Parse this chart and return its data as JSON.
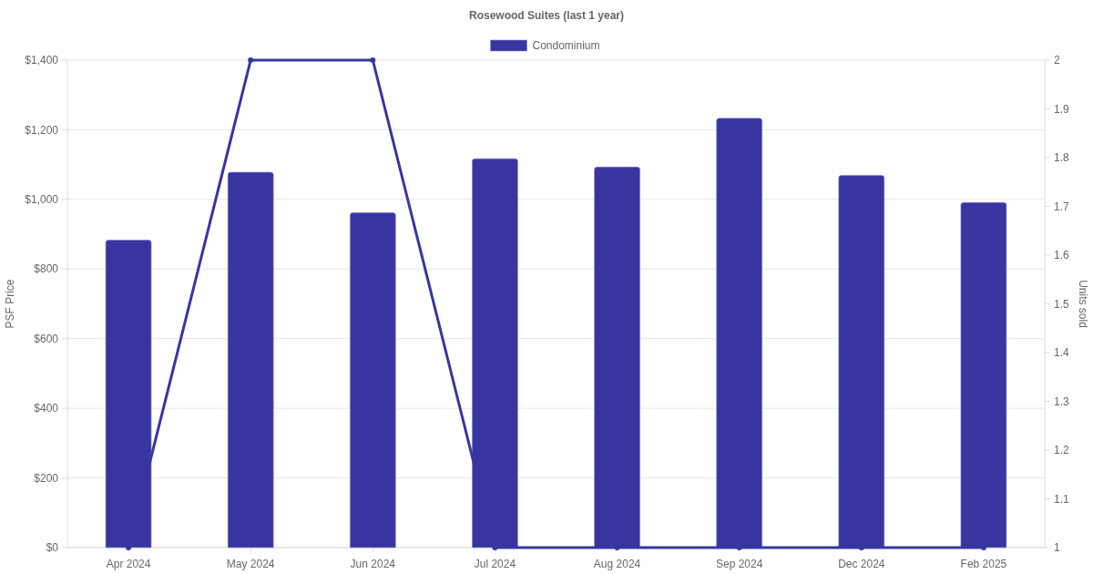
{
  "chart_data": {
    "type": "bar",
    "title": "Rosewood Suites (last 1 year)",
    "categories": [
      "Apr 2024",
      "May 2024",
      "Jun 2024",
      "Jul 2024",
      "Aug 2024",
      "Sep 2024",
      "Dec 2024",
      "Feb 2025"
    ],
    "series": [
      {
        "name": "Condominium",
        "color": "#3935a0",
        "values": [
          883,
          1078,
          962,
          1117,
          1093,
          1233,
          1069,
          991
        ]
      },
      {
        "type": "line",
        "axis": "y2",
        "color": "#3935a0",
        "values": [
          1,
          2,
          2,
          1,
          1,
          1,
          1,
          1
        ]
      }
    ],
    "ylabel": "PSF Price",
    "y2label": "Units sold",
    "ylim": [
      0,
      1400
    ],
    "yticks": [
      {
        "value": 0,
        "label": "$0"
      },
      {
        "value": 200,
        "label": "$200"
      },
      {
        "value": 400,
        "label": "$400"
      },
      {
        "value": 600,
        "label": "$600"
      },
      {
        "value": 800,
        "label": "$800"
      },
      {
        "value": 1000,
        "label": "$1,000"
      },
      {
        "value": 1200,
        "label": "$1,200"
      },
      {
        "value": 1400,
        "label": "$1,400"
      }
    ],
    "y2lim": [
      1,
      2
    ],
    "y2ticks": [
      1,
      {
        "value": 1.1,
        "label": "1.1"
      },
      {
        "value": 1.2,
        "label": "1.2"
      },
      {
        "value": 1.3,
        "label": "1.3"
      },
      {
        "value": 1.4,
        "label": "1.4"
      },
      {
        "value": 1.5,
        "label": "1.5"
      },
      {
        "value": 1.6,
        "label": "1.6"
      },
      {
        "value": 1.7,
        "label": "1.7"
      },
      {
        "value": 1.8,
        "label": "1.8"
      },
      {
        "value": 1.9,
        "label": "1.9"
      },
      2
    ],
    "grid": "y",
    "legend": "top",
    "marker": "circle",
    "line_style": "solid"
  }
}
